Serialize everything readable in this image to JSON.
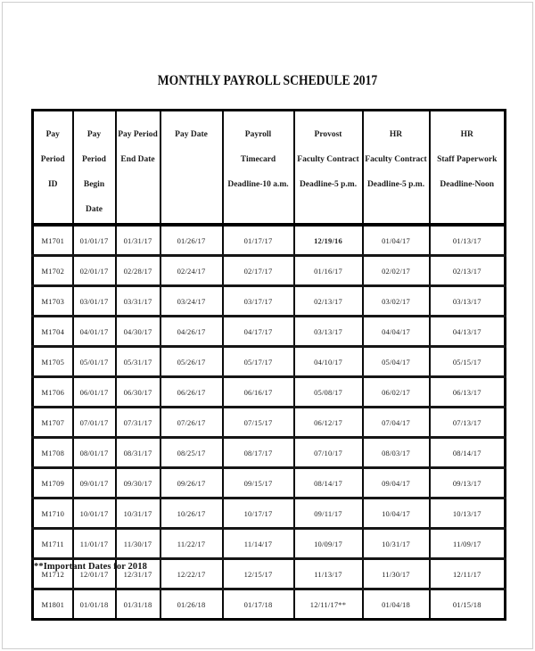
{
  "page": {
    "title": "MONTHLY PAYROLL SCHEDULE 2017",
    "footnote": "**Important Dates for 2018"
  },
  "table": {
    "columns": [
      {
        "name": "pay-period-id",
        "lines": [
          "Pay Period",
          "ID"
        ]
      },
      {
        "name": "pay-period-begin-date",
        "lines": [
          "Pay Period",
          "Begin Date"
        ]
      },
      {
        "name": "pay-period-end-date",
        "lines": [
          "Pay Period",
          "End Date"
        ]
      },
      {
        "name": "pay-date",
        "lines": [
          "Pay Date"
        ]
      },
      {
        "name": "payroll-timecard",
        "lines": [
          "Payroll",
          "Timecard",
          "Deadline-10 a.m."
        ]
      },
      {
        "name": "provost-faculty",
        "lines": [
          "Provost",
          "Faculty Contract",
          "Deadline-5 p.m."
        ]
      },
      {
        "name": "hr-faculty",
        "lines": [
          "HR",
          "Faculty Contract",
          "Deadline-5 p.m."
        ]
      },
      {
        "name": "hr-staff",
        "lines": [
          "HR",
          "Staff Paperwork",
          "Deadline-Noon"
        ]
      }
    ],
    "rows": [
      {
        "cells": [
          "M1701",
          "01/01/17",
          "01/31/17",
          "01/26/17",
          "01/17/17",
          "12/19/16",
          "01/04/17",
          "01/13/17"
        ],
        "bold": [
          5
        ]
      },
      {
        "cells": [
          "M1702",
          "02/01/17",
          "02/28/17",
          "02/24/17",
          "02/17/17",
          "01/16/17",
          "02/02/17",
          "02/13/17"
        ],
        "bold": []
      },
      {
        "cells": [
          "M1703",
          "03/01/17",
          "03/31/17",
          "03/24/17",
          "03/17/17",
          "02/13/17",
          "03/02/17",
          "03/13/17"
        ],
        "bold": []
      },
      {
        "cells": [
          "M1704",
          "04/01/17",
          "04/30/17",
          "04/26/17",
          "04/17/17",
          "03/13/17",
          "04/04/17",
          "04/13/17"
        ],
        "bold": []
      },
      {
        "cells": [
          "M1705",
          "05/01/17",
          "05/31/17",
          "05/26/17",
          "05/17/17",
          "04/10/17",
          "05/04/17",
          "05/15/17"
        ],
        "bold": []
      },
      {
        "cells": [
          "M1706",
          "06/01/17",
          "06/30/17",
          "06/26/17",
          "06/16/17",
          "05/08/17",
          "06/02/17",
          "06/13/17"
        ],
        "bold": []
      },
      {
        "cells": [
          "M1707",
          "07/01/17",
          "07/31/17",
          "07/26/17",
          "07/15/17",
          "06/12/17",
          "07/04/17",
          "07/13/17"
        ],
        "bold": []
      },
      {
        "cells": [
          "M1708",
          "08/01/17",
          "08/31/17",
          "08/25/17",
          "08/17/17",
          "07/10/17",
          "08/03/17",
          "08/14/17"
        ],
        "bold": []
      },
      {
        "cells": [
          "M1709",
          "09/01/17",
          "09/30/17",
          "09/26/17",
          "09/15/17",
          "08/14/17",
          "09/04/17",
          "09/13/17"
        ],
        "bold": []
      },
      {
        "cells": [
          "M1710",
          "10/01/17",
          "10/31/17",
          "10/26/17",
          "10/17/17",
          "09/11/17",
          "10/04/17",
          "10/13/17"
        ],
        "bold": []
      },
      {
        "cells": [
          "M1711",
          "11/01/17",
          "11/30/17",
          "11/22/17",
          "11/14/17",
          "10/09/17",
          "10/31/17",
          "11/09/17"
        ],
        "bold": []
      },
      {
        "cells": [
          "M1712",
          "12/01/17",
          "12/31/17",
          "12/22/17",
          "12/15/17",
          "11/13/17",
          "11/30/17",
          "12/11/17"
        ],
        "bold": []
      },
      {
        "cells": [
          "M1801",
          "01/01/18",
          "01/31/18",
          "01/26/18",
          "01/17/18",
          "12/11/17**",
          "01/04/18",
          "01/15/18"
        ],
        "bold": []
      }
    ]
  }
}
